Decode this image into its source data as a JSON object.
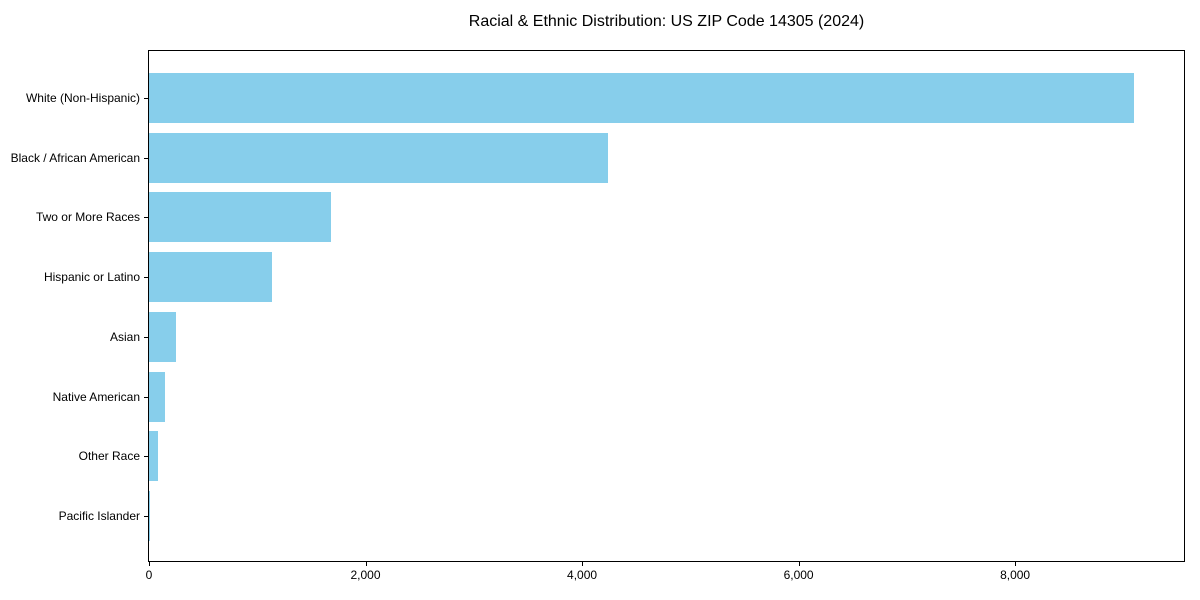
{
  "chart_data": {
    "type": "bar",
    "orientation": "horizontal",
    "title": "Racial & Ethnic Distribution: US ZIP Code 14305 (2024)",
    "categories": [
      "White (Non-Hispanic)",
      "Black / African American",
      "Two or More Races",
      "Hispanic or Latino",
      "Asian",
      "Native American",
      "Other Race",
      "Pacific Islander"
    ],
    "values": [
      9100,
      4240,
      1680,
      1140,
      250,
      150,
      85,
      10
    ],
    "bar_color": "#87CEEB",
    "xlabel": "",
    "ylabel": "",
    "xlim": [
      0,
      9560
    ],
    "x_ticks": [
      {
        "value": 0,
        "label": "0"
      },
      {
        "value": 2000,
        "label": "2,000"
      },
      {
        "value": 4000,
        "label": "4,000"
      },
      {
        "value": 6000,
        "label": "6,000"
      },
      {
        "value": 8000,
        "label": "8,000"
      }
    ],
    "grid": false,
    "legend_position": "none"
  }
}
